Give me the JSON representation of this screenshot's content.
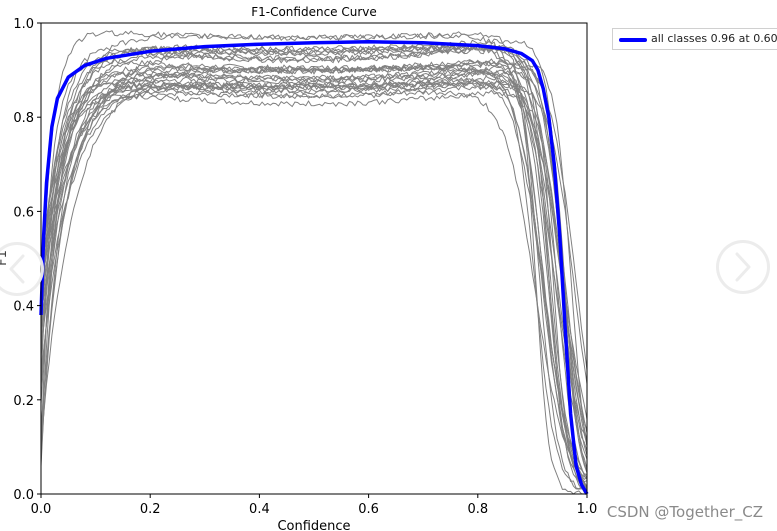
{
  "chart_data": {
    "type": "line",
    "title": "F1-Confidence Curve",
    "xlabel": "Confidence",
    "ylabel": "F1",
    "xlim": [
      0.0,
      1.0
    ],
    "ylim": [
      0.0,
      1.0
    ],
    "xticks": [
      "0.0",
      "0.2",
      "0.4",
      "0.6",
      "0.8",
      "1.0"
    ],
    "yticks": [
      "0.0",
      "0.2",
      "0.4",
      "0.6",
      "0.8",
      "1.0"
    ],
    "grid": false,
    "legend_position": "outside-top-right",
    "series": [
      {
        "name": "all classes 0.96 at 0.600",
        "color": "#0000ff",
        "x": [
          0.0,
          0.005,
          0.01,
          0.02,
          0.03,
          0.05,
          0.08,
          0.12,
          0.2,
          0.3,
          0.4,
          0.5,
          0.6,
          0.7,
          0.8,
          0.85,
          0.88,
          0.9,
          0.91,
          0.92,
          0.93,
          0.94,
          0.95,
          0.96,
          0.97,
          0.98,
          0.99,
          1.0
        ],
        "y": [
          0.38,
          0.55,
          0.66,
          0.78,
          0.84,
          0.885,
          0.91,
          0.925,
          0.94,
          0.95,
          0.955,
          0.958,
          0.96,
          0.958,
          0.952,
          0.945,
          0.935,
          0.92,
          0.9,
          0.86,
          0.8,
          0.7,
          0.55,
          0.35,
          0.17,
          0.06,
          0.02,
          0.0
        ]
      }
    ],
    "background_series_color": "#808080",
    "background_series_count": 30
  },
  "legend": {
    "label": "all classes 0.96 at 0.600"
  },
  "watermark": "CSDN @Together_CZ",
  "nav": {
    "prev_icon": "chevron-left-icon",
    "next_icon": "chevron-right-icon"
  }
}
